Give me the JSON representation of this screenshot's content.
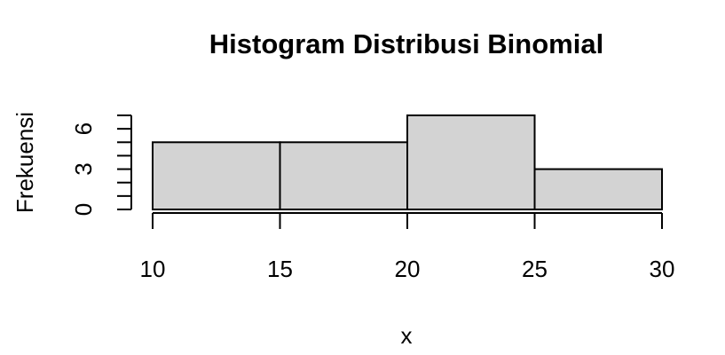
{
  "chart_data": {
    "type": "bar",
    "title": "Histogram Distribusi Binomial",
    "xlabel": "x",
    "ylabel": "Frekuensi",
    "bins": [
      {
        "from": 10,
        "to": 15,
        "count": 5
      },
      {
        "from": 15,
        "to": 20,
        "count": 5
      },
      {
        "from": 20,
        "to": 25,
        "count": 7
      },
      {
        "from": 25,
        "to": 30,
        "count": 3
      }
    ],
    "x_ticks": [
      10,
      15,
      20,
      25,
      30
    ],
    "y_ticks": [
      0,
      3,
      6
    ],
    "y_minor_ticks": [
      0,
      1,
      2,
      3,
      4,
      5,
      6,
      7
    ],
    "xlim": [
      10,
      30
    ],
    "ylim": [
      0,
      7
    ],
    "bar_color": "#d3d3d3",
    "grid": false,
    "legend": "none"
  }
}
